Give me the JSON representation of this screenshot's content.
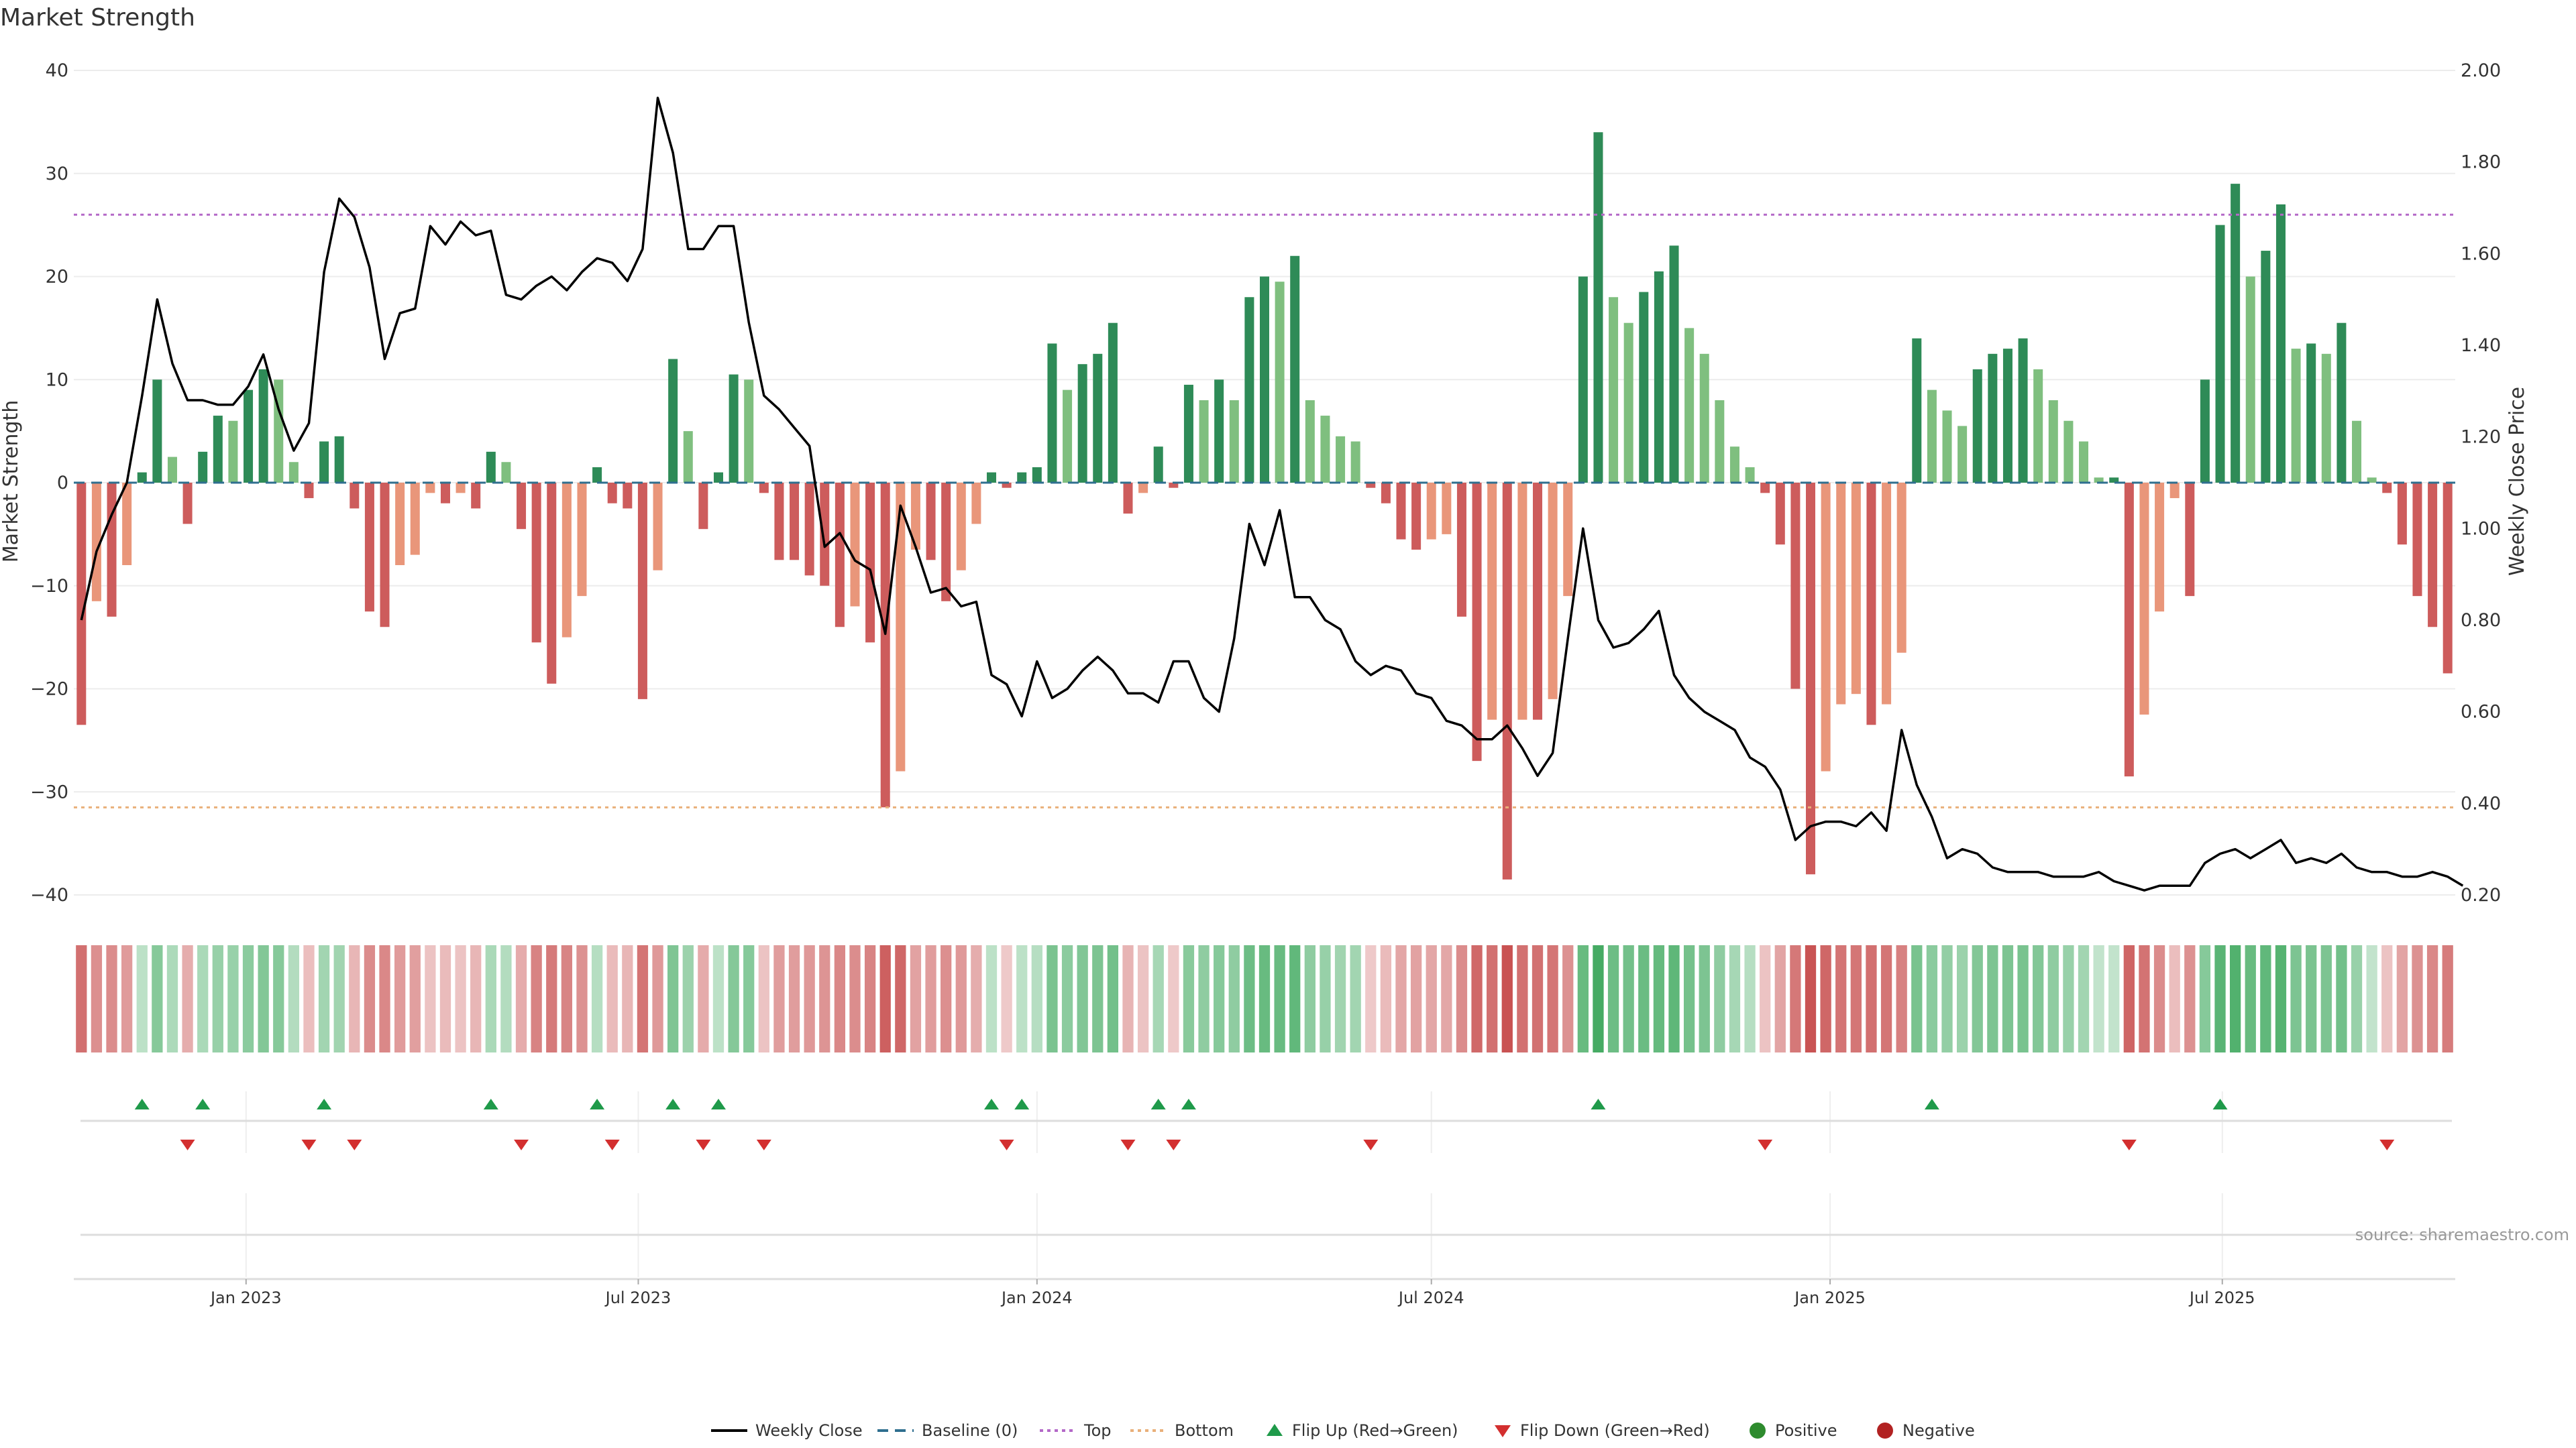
{
  "title": "Market Strength",
  "source": "source: sharemaestro.com",
  "chart_data": {
    "type": "bar",
    "title": "Market Strength",
    "ylabel": "Market Strength",
    "y2label": "Weekly Close Price",
    "ylim": [
      -40,
      40
    ],
    "y2lim": [
      0.2,
      2.0
    ],
    "y_ticks": [
      "40",
      "30",
      "20",
      "10",
      "0",
      "−10",
      "−20",
      "−30",
      "−40"
    ],
    "y2_ticks": [
      "2.00",
      "1.80",
      "1.60",
      "1.40",
      "1.20",
      "1.00",
      "0.80",
      "0.60",
      "0.40",
      "0.20"
    ],
    "x_start": "2022-10-17",
    "x_step_days": 7,
    "x_ticks": [
      {
        "label": "Jan 2023",
        "date": "2023-01-01"
      },
      {
        "label": "Jul 2023",
        "date": "2023-07-01"
      },
      {
        "label": "Jan 2024",
        "date": "2024-01-01"
      },
      {
        "label": "Jul 2024",
        "date": "2024-07-01"
      },
      {
        "label": "Jan 2025",
        "date": "2025-01-01"
      },
      {
        "label": "Jul 2025",
        "date": "2025-07-01"
      }
    ],
    "top_line": 26,
    "bottom_line": -31.5,
    "strength": [
      -23.5,
      -11.5,
      -13,
      -8,
      1,
      10,
      2.5,
      -4,
      3,
      6.5,
      6,
      9,
      11,
      10,
      2,
      -1.5,
      4,
      4.5,
      -2.5,
      -12.5,
      -14,
      -8,
      -7,
      -1,
      -2,
      -1,
      -2.5,
      3,
      2,
      -4.5,
      -15.5,
      -19.5,
      -15,
      -11,
      1.5,
      -2,
      -2.5,
      -21,
      -8.5,
      12,
      5,
      -4.5,
      1,
      10.5,
      10,
      -1,
      -7.5,
      -7.5,
      -9,
      -10,
      -14,
      -12,
      -15.5,
      -31.5,
      -28,
      -6.5,
      -7.5,
      -11.5,
      -8.5,
      -4,
      1,
      -0.5,
      1,
      1.5,
      13.5,
      9,
      11.5,
      12.5,
      15.5,
      -3,
      -1,
      3.5,
      -0.5,
      9.5,
      8,
      10,
      8,
      18,
      20,
      19.5,
      22,
      8,
      6.5,
      4.5,
      4,
      -0.5,
      -2,
      -5.5,
      -6.5,
      -5.5,
      -5,
      -13,
      -27,
      -23,
      -38.5,
      -23,
      -23,
      -21,
      -11,
      20,
      34,
      18,
      15.5,
      18.5,
      20.5,
      23,
      15,
      12.5,
      8,
      3.5,
      1.5,
      -1,
      -6,
      -20,
      -38,
      -28,
      -21.5,
      -20.5,
      -23.5,
      -21.5,
      -16.5,
      14,
      9,
      7,
      5.5,
      11,
      12.5,
      13,
      14,
      11,
      8,
      6,
      4,
      0.5,
      0.5,
      -28.5,
      -22.5,
      -12.5,
      -1.5,
      -11,
      10,
      25,
      29,
      20,
      22.5,
      27,
      13,
      13.5,
      12.5,
      15.5,
      6,
      0.5,
      -1,
      -6,
      -11,
      -14,
      -18.5
    ],
    "weekly_close": [
      0.8,
      0.95,
      1.03,
      1.1,
      1.29,
      1.5,
      1.36,
      1.28,
      1.28,
      1.27,
      1.27,
      1.31,
      1.38,
      1.26,
      1.17,
      1.23,
      1.56,
      1.72,
      1.68,
      1.57,
      1.37,
      1.47,
      1.48,
      1.66,
      1.62,
      1.67,
      1.64,
      1.65,
      1.51,
      1.5,
      1.53,
      1.55,
      1.52,
      1.56,
      1.59,
      1.58,
      1.54,
      1.61,
      1.94,
      1.82,
      1.61,
      1.61,
      1.66,
      1.66,
      1.45,
      1.29,
      1.26,
      1.22,
      1.18,
      0.96,
      0.99,
      0.93,
      0.91,
      0.77,
      1.05,
      0.96,
      0.86,
      0.87,
      0.83,
      0.84,
      0.68,
      0.66,
      0.59,
      0.71,
      0.63,
      0.65,
      0.69,
      0.72,
      0.69,
      0.64,
      0.64,
      0.62,
      0.71,
      0.71,
      0.63,
      0.6,
      0.76,
      1.01,
      0.92,
      1.04,
      0.85,
      0.85,
      0.8,
      0.78,
      0.71,
      0.68,
      0.7,
      0.69,
      0.64,
      0.63,
      0.58,
      0.57,
      0.54,
      0.54,
      0.57,
      0.52,
      0.46,
      0.51,
      0.76,
      1.0,
      0.8,
      0.74,
      0.75,
      0.78,
      0.82,
      0.68,
      0.63,
      0.6,
      0.58,
      0.56,
      0.5,
      0.48,
      0.43,
      0.32,
      0.35,
      0.36,
      0.36,
      0.35,
      0.38,
      0.34,
      0.56,
      0.44,
      0.37,
      0.28,
      0.3,
      0.29,
      0.26,
      0.25,
      0.25,
      0.25,
      0.24,
      0.24,
      0.24,
      0.25,
      0.23,
      0.22,
      0.21,
      0.22,
      0.22,
      0.22,
      0.27,
      0.29,
      0.3,
      0.28,
      0.3,
      0.32,
      0.27,
      0.28,
      0.27,
      0.29,
      0.26,
      0.25,
      0.25,
      0.24,
      0.24,
      0.25,
      0.24,
      0.22
    ],
    "flip_up_weeks": [
      4,
      8,
      16,
      27,
      34,
      39,
      42,
      60,
      62,
      71,
      73,
      100,
      122,
      141
    ],
    "flip_down_weeks": [
      7,
      15,
      18,
      29,
      35,
      41,
      45,
      61,
      69,
      72,
      85,
      111,
      135,
      152
    ]
  },
  "colors": {
    "dark_green": "#2e8b57",
    "light_green": "#7fbf7f",
    "dark_red": "#cd5c5c",
    "light_red": "#e9967a",
    "top_line": "#b469c8",
    "bottom_line": "#e9b07a",
    "flip_up": "#1f9a4a",
    "flip_down": "#d32f2f",
    "positive": "#2e8b2e",
    "negative": "#b22222",
    "price_line": "#000000"
  },
  "legend": [
    {
      "label": "Weekly Close",
      "kind": "line"
    },
    {
      "label": "Baseline (0)",
      "kind": "dashed"
    },
    {
      "label": "Top",
      "kind": "dotted-purple"
    },
    {
      "label": "Bottom",
      "kind": "dotted-orange"
    },
    {
      "label": "Flip Up (Red→Green)",
      "kind": "triangle-up"
    },
    {
      "label": "Flip Down (Green→Red)",
      "kind": "triangle-down"
    },
    {
      "label": "Positive",
      "kind": "dot-green"
    },
    {
      "label": "Negative",
      "kind": "dot-red"
    }
  ]
}
